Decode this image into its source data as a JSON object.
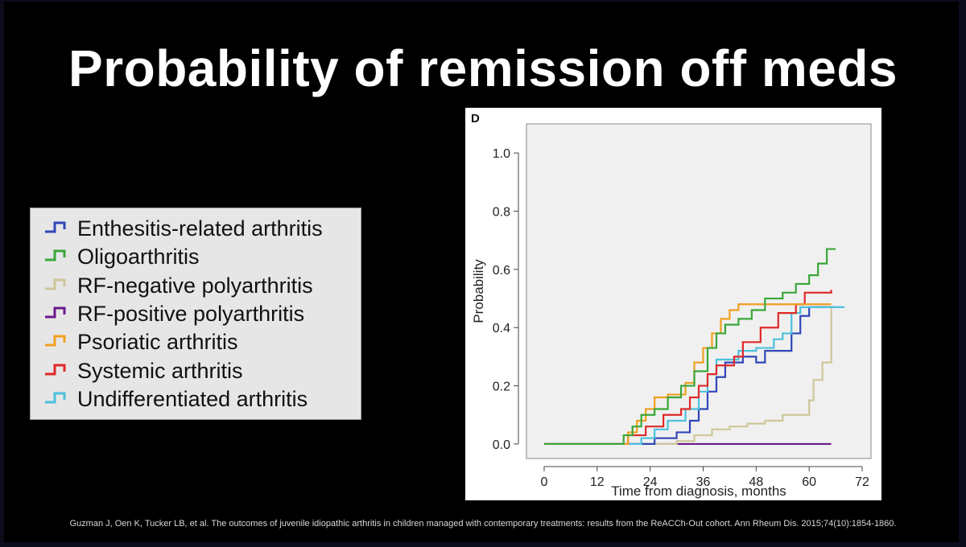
{
  "title": "Probability of remission off meds",
  "citation": "Guzman J, Oen K, Tucker LB, et al. The outcomes of juvenile idiopathic arthritis in children managed with contemporary treatments: results from the ReACCh-Out cohort. Ann Rheum Dis. 2015;74(10):1854-1860.",
  "legend": [
    {
      "label": "Enthesitis-related arthritis",
      "color": "#3046b8"
    },
    {
      "label": "Oligoarthritis",
      "color": "#3aa63a"
    },
    {
      "label": "RF-negative polyarthritis",
      "color": "#cdc79a"
    },
    {
      "label": "RF-positive polyarthritis",
      "color": "#6a1a8c"
    },
    {
      "label": "Psoriatic arthritis",
      "color": "#f0a020"
    },
    {
      "label": "Systemic arthritis",
      "color": "#e02828"
    },
    {
      "label": "Undifferentiated arthritis",
      "color": "#4cc0dc"
    }
  ],
  "chart_data": {
    "type": "line",
    "panel_label": "D",
    "xlabel": "Time from diagnosis, months",
    "ylabel": "Probability",
    "xlim": [
      -4,
      74
    ],
    "ylim": [
      -0.05,
      1.1
    ],
    "xticks": [
      "0",
      "12",
      "24",
      "36",
      "48",
      "60",
      "72"
    ],
    "xtick_values": [
      0,
      12,
      24,
      36,
      48,
      60,
      72
    ],
    "yticks": [
      "0.0",
      "0.2",
      "0.4",
      "0.6",
      "0.8",
      "1.0"
    ],
    "ytick_values": [
      0,
      0.2,
      0.4,
      0.6,
      0.8,
      1.0
    ],
    "plot_background": "#f0f0f0",
    "series": [
      {
        "name": "RF-positive polyarthritis",
        "color": "#6a1a8c",
        "points": [
          [
            0,
            0
          ],
          [
            65,
            0
          ]
        ]
      },
      {
        "name": "RF-negative polyarthritis",
        "color": "#cdc79a",
        "points": [
          [
            0,
            0
          ],
          [
            24,
            0
          ],
          [
            30,
            0.01
          ],
          [
            34,
            0.03
          ],
          [
            38,
            0.05
          ],
          [
            42,
            0.06
          ],
          [
            46,
            0.07
          ],
          [
            50,
            0.08
          ],
          [
            54,
            0.1
          ],
          [
            60,
            0.15
          ],
          [
            61,
            0.22
          ],
          [
            63,
            0.28
          ],
          [
            65,
            0.47
          ],
          [
            67,
            0.47
          ]
        ]
      },
      {
        "name": "Enthesitis-related arthritis",
        "color": "#3046b8",
        "points": [
          [
            0,
            0
          ],
          [
            18,
            0
          ],
          [
            25,
            0.02
          ],
          [
            30,
            0.04
          ],
          [
            33,
            0.08
          ],
          [
            35,
            0.12
          ],
          [
            37,
            0.18
          ],
          [
            39,
            0.23
          ],
          [
            41,
            0.28
          ],
          [
            45,
            0.3
          ],
          [
            48,
            0.28
          ],
          [
            50,
            0.32
          ],
          [
            56,
            0.38
          ],
          [
            58,
            0.44
          ],
          [
            60,
            0.47
          ],
          [
            66,
            0.47
          ]
        ]
      },
      {
        "name": "Undifferentiated arthritis",
        "color": "#4cc0dc",
        "points": [
          [
            0,
            0
          ],
          [
            20,
            0
          ],
          [
            22,
            0.02
          ],
          [
            25,
            0.05
          ],
          [
            28,
            0.08
          ],
          [
            32,
            0.12
          ],
          [
            35,
            0.18
          ],
          [
            37,
            0.24
          ],
          [
            39,
            0.29
          ],
          [
            44,
            0.32
          ],
          [
            48,
            0.33
          ],
          [
            52,
            0.36
          ],
          [
            54,
            0.38
          ],
          [
            56,
            0.45
          ],
          [
            58,
            0.47
          ],
          [
            68,
            0.47
          ]
        ]
      },
      {
        "name": "Systemic arthritis",
        "color": "#e02828",
        "points": [
          [
            0,
            0
          ],
          [
            16,
            0
          ],
          [
            19,
            0.03
          ],
          [
            23,
            0.06
          ],
          [
            27,
            0.1
          ],
          [
            31,
            0.12
          ],
          [
            33,
            0.16
          ],
          [
            35,
            0.2
          ],
          [
            37,
            0.24
          ],
          [
            39,
            0.27
          ],
          [
            43,
            0.3
          ],
          [
            45,
            0.35
          ],
          [
            49,
            0.4
          ],
          [
            53,
            0.45
          ],
          [
            57,
            0.48
          ],
          [
            59,
            0.52
          ],
          [
            65,
            0.53
          ]
        ]
      },
      {
        "name": "Psoriatic arthritis",
        "color": "#f0a020",
        "points": [
          [
            0,
            0
          ],
          [
            17,
            0
          ],
          [
            19,
            0.04
          ],
          [
            21,
            0.08
          ],
          [
            23,
            0.12
          ],
          [
            25,
            0.16
          ],
          [
            28,
            0.17
          ],
          [
            32,
            0.21
          ],
          [
            34,
            0.28
          ],
          [
            36,
            0.33
          ],
          [
            38,
            0.38
          ],
          [
            40,
            0.43
          ],
          [
            42,
            0.46
          ],
          [
            44,
            0.48
          ],
          [
            58,
            0.48
          ],
          [
            65,
            0.48
          ]
        ]
      },
      {
        "name": "Oligoarthritis",
        "color": "#3aa63a",
        "points": [
          [
            0,
            0
          ],
          [
            15,
            0
          ],
          [
            18,
            0.03
          ],
          [
            20,
            0.06
          ],
          [
            22,
            0.1
          ],
          [
            25,
            0.12
          ],
          [
            28,
            0.16
          ],
          [
            31,
            0.2
          ],
          [
            34,
            0.25
          ],
          [
            37,
            0.33
          ],
          [
            39,
            0.38
          ],
          [
            41,
            0.41
          ],
          [
            44,
            0.43
          ],
          [
            47,
            0.46
          ],
          [
            50,
            0.5
          ],
          [
            54,
            0.52
          ],
          [
            57,
            0.55
          ],
          [
            60,
            0.58
          ],
          [
            62,
            0.62
          ],
          [
            64,
            0.67
          ],
          [
            66,
            0.67
          ]
        ]
      }
    ]
  }
}
